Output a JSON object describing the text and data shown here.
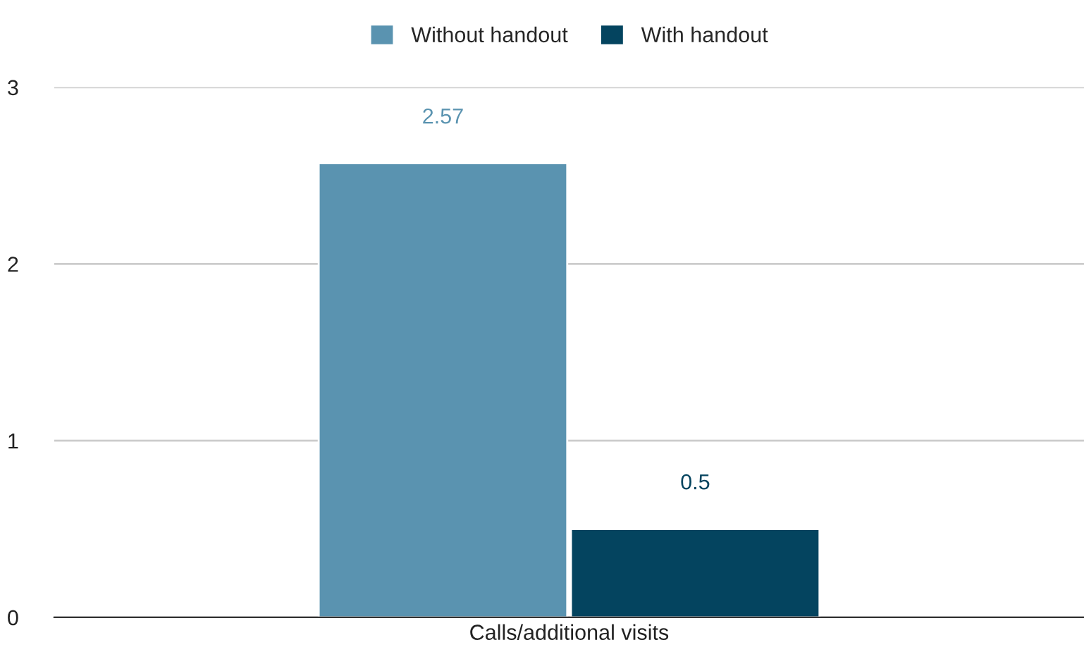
{
  "chart_data": {
    "type": "bar",
    "categories": [
      "Calls/additional visits"
    ],
    "series": [
      {
        "name": "Without handout",
        "color": "#5a93b0",
        "values": [
          2.57
        ]
      },
      {
        "name": "With handout",
        "color": "#04445f",
        "values": [
          0.5
        ]
      }
    ],
    "ylim": [
      0,
      3
    ],
    "yticks": [
      0,
      1,
      2,
      3
    ],
    "grid": "y",
    "legend": "top",
    "data_labels": true
  }
}
